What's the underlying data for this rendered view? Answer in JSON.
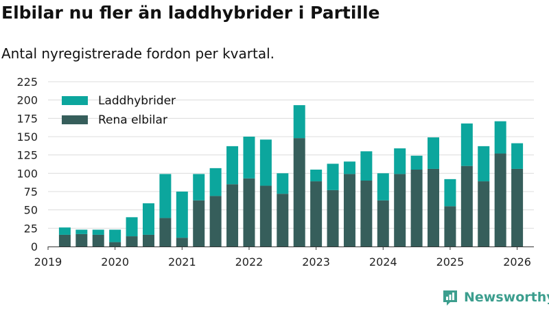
{
  "header": {
    "title": "Elbilar nu fler än laddhybrider i Partille",
    "subtitle": "Antal nyregistrerade fordon per kvartal."
  },
  "brand": {
    "name": "Newsworthy",
    "color": "#3c9e8e"
  },
  "chart_data": {
    "type": "bar",
    "stacked": true,
    "x": [
      2019.25,
      2019.5,
      2019.75,
      2020.0,
      2020.25,
      2020.5,
      2020.75,
      2021.0,
      2021.25,
      2021.5,
      2021.75,
      2022.0,
      2022.25,
      2022.5,
      2022.75,
      2023.0,
      2023.25,
      2023.5,
      2023.75,
      2024.0,
      2024.25,
      2024.5,
      2024.75,
      2025.0,
      2025.25,
      2025.5,
      2025.75,
      2026.0
    ],
    "series": [
      {
        "name": "Rena elbilar",
        "color": "#365e5b",
        "values": [
          16,
          17,
          16,
          6,
          14,
          16,
          39,
          12,
          63,
          69,
          85,
          93,
          83,
          72,
          148,
          89,
          77,
          99,
          90,
          63,
          99,
          105,
          106,
          55,
          110,
          89,
          127,
          106
        ]
      },
      {
        "name": "Laddhybrider",
        "color": "#0ca69d",
        "values": [
          10,
          6,
          7,
          17,
          26,
          43,
          60,
          63,
          36,
          38,
          52,
          57,
          63,
          28,
          45,
          16,
          36,
          17,
          40,
          37,
          35,
          19,
          43,
          37,
          58,
          48,
          44,
          35
        ]
      }
    ],
    "x_ticks": [
      "2019",
      "2020",
      "2021",
      "2022",
      "2023",
      "2024",
      "2025",
      "2026"
    ],
    "y_ticks": [
      "0",
      "25",
      "50",
      "75",
      "100",
      "125",
      "150",
      "175",
      "200",
      "225"
    ],
    "xlim": [
      2019.0,
      2026.25
    ],
    "ylim": [
      0,
      225
    ],
    "grid": true,
    "legend_position": "top-left"
  }
}
